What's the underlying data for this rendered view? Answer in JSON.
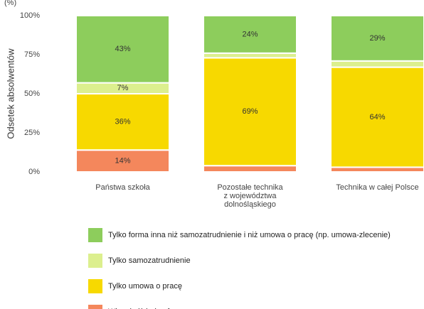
{
  "chart_data": {
    "type": "stacked_bar",
    "unit_note": "(%)",
    "y_label": "Odsetek absolwentów",
    "categories": [
      "Państwa szkoła",
      "Pozostałe technika\nz województwa\ndolnośląskiego",
      "Technika w całej Polsce"
    ],
    "series": [
      {
        "name": "Więcej niż jedna forma",
        "color": "#f4875c",
        "values": [
          14,
          4,
          3
        ],
        "value_labels": [
          "14%",
          null,
          null
        ]
      },
      {
        "name": "Tylko umowa o pracę",
        "color": "#f7d900",
        "values": [
          36,
          69,
          64
        ],
        "value_labels": [
          "36%",
          "69%",
          "64%"
        ]
      },
      {
        "name": "Tylko samozatrudnienie",
        "color": "#dcef8e",
        "values": [
          7,
          3,
          4
        ],
        "value_labels": [
          "7%",
          null,
          null
        ]
      },
      {
        "name": "Tylko forma inna niż samozatrudnienie i niż umowa o pracę (np. umowa-zlecenie)",
        "color": "#8dcd5c",
        "values": [
          43,
          24,
          29
        ],
        "value_labels": [
          "43%",
          "24%",
          "29%"
        ]
      }
    ],
    "ylim": [
      0,
      100
    ],
    "yticks": [
      {
        "value": 0,
        "label": "0%"
      },
      {
        "value": 25,
        "label": "25%"
      },
      {
        "value": 50,
        "label": "50%"
      },
      {
        "value": 75,
        "label": "75%"
      },
      {
        "value": 100,
        "label": "100%"
      }
    ],
    "grid": false
  }
}
